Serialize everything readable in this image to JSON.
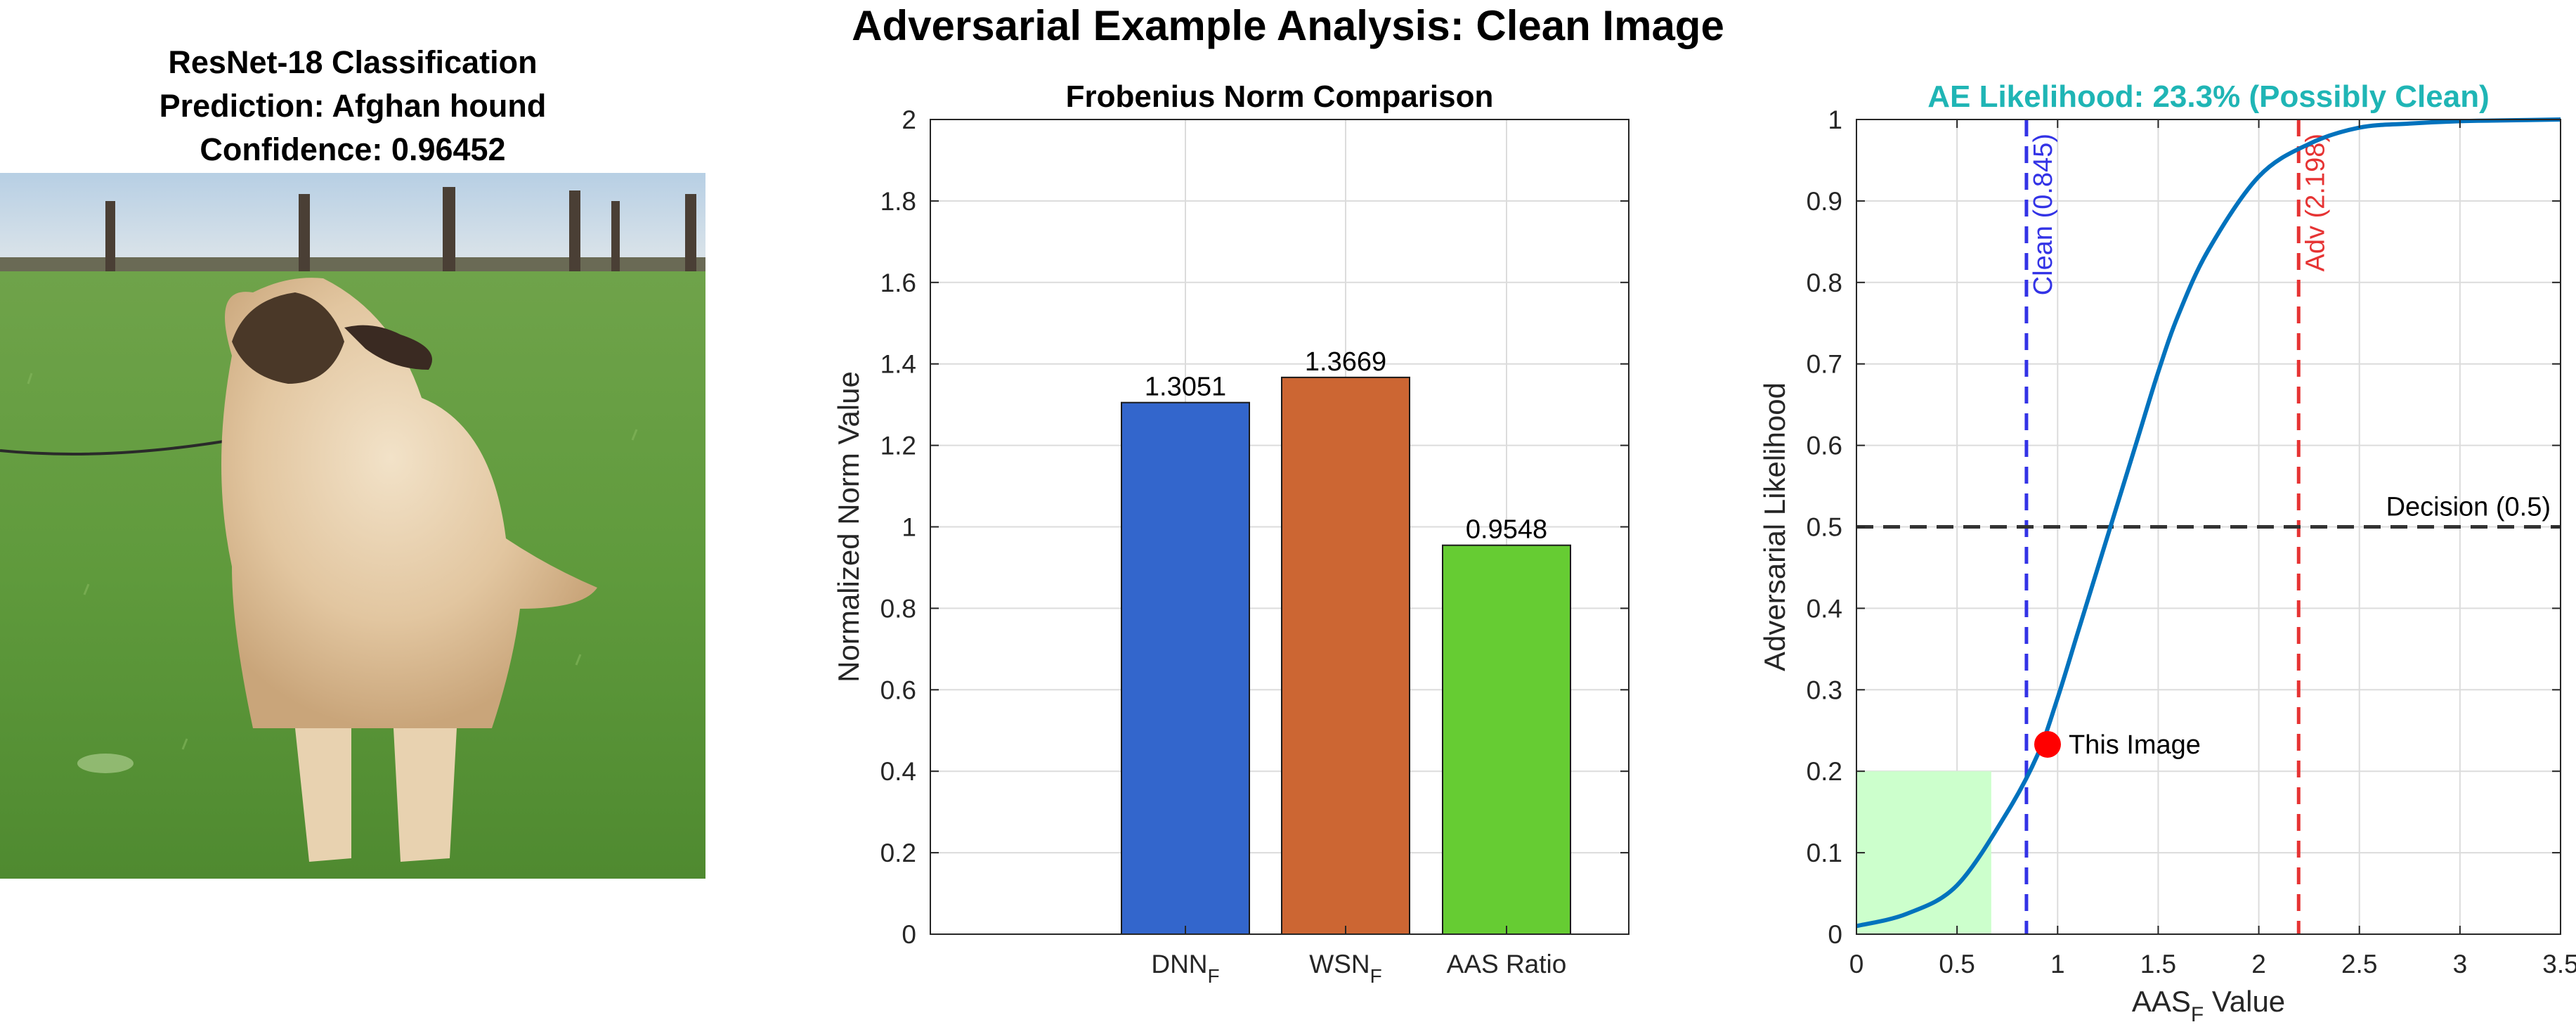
{
  "figure": {
    "title": "Adversarial Example Analysis: Clean Image"
  },
  "image_panel": {
    "title_line1": "ResNet-18 Classification",
    "title_line2": "Prediction: Afghan hound",
    "title_line3": "Confidence: 0.96452"
  },
  "chart_data": [
    {
      "type": "bar",
      "title": "Frobenius Norm Comparison",
      "xlabel": "",
      "ylabel": "Normalized Norm Value",
      "categories": [
        "DNN_F",
        "WSN_F",
        "AAS Ratio"
      ],
      "category_display": [
        {
          "base": "DNN",
          "sub": "F"
        },
        {
          "base": "WSN",
          "sub": "F"
        },
        {
          "base": "AAS Ratio",
          "sub": ""
        }
      ],
      "values": [
        1.3051,
        1.3669,
        0.9548
      ],
      "value_labels": [
        "1.3051",
        "1.3669",
        "0.9548"
      ],
      "colors": [
        "#3366cc",
        "#cc6633",
        "#66cc33"
      ],
      "ylim": [
        0,
        2
      ],
      "yticks": [
        0,
        0.2,
        0.4,
        0.6,
        0.8,
        1,
        1.2,
        1.4,
        1.6,
        1.8,
        2
      ],
      "ytick_labels": [
        "0",
        "0.2",
        "0.4",
        "0.6",
        "0.8",
        "1",
        "1.2",
        "1.4",
        "1.6",
        "1.8",
        "2"
      ],
      "grid": true
    },
    {
      "type": "line",
      "title": "AE Likelihood: 23.3% (Possibly Clean)",
      "title_color": "#1fb5b5",
      "xlabel": "AAS",
      "xlabel_sub": "F",
      "xlabel_suffix": " Value",
      "ylabel": "Adversarial Likelihood",
      "xlim": [
        0,
        3.5
      ],
      "ylim": [
        0,
        1
      ],
      "xticks": [
        0,
        0.5,
        1,
        1.5,
        2,
        2.5,
        3,
        3.5
      ],
      "xtick_labels": [
        "0",
        "0.5",
        "1",
        "1.5",
        "2",
        "2.5",
        "3",
        "3.5"
      ],
      "yticks": [
        0,
        0.1,
        0.2,
        0.3,
        0.4,
        0.5,
        0.6,
        0.7,
        0.8,
        0.9,
        1
      ],
      "ytick_labels": [
        "0",
        "0.1",
        "0.2",
        "0.3",
        "0.4",
        "0.5",
        "0.6",
        "0.7",
        "0.8",
        "0.9",
        "1"
      ],
      "grid": true,
      "curve": {
        "x": [
          0,
          0.25,
          0.5,
          0.75,
          0.9,
          1.0,
          1.1,
          1.2,
          1.3,
          1.4,
          1.5,
          1.6,
          1.75,
          2.0,
          2.25,
          2.5,
          2.75,
          3.0,
          3.25,
          3.5
        ],
        "y": [
          0.01,
          0.025,
          0.06,
          0.15,
          0.22,
          0.29,
          0.37,
          0.45,
          0.53,
          0.61,
          0.69,
          0.76,
          0.84,
          0.93,
          0.97,
          0.99,
          0.995,
          0.998,
          0.999,
          1.0
        ],
        "color": "#0072bd"
      },
      "reference_lines": [
        {
          "label": "Clean (0.845)",
          "x": 0.845,
          "orientation": "vertical",
          "color": "#3333e6"
        },
        {
          "label": "Adv (2.198)",
          "x": 2.198,
          "orientation": "vertical",
          "color": "#e63333"
        },
        {
          "label": "Decision (0.5)",
          "y": 0.5,
          "orientation": "horizontal",
          "color": "#333333"
        }
      ],
      "point": {
        "label": "This Image",
        "x": 0.95,
        "y": 0.233,
        "color": "#ff0000"
      },
      "shaded_region": {
        "x": [
          0,
          0.67
        ],
        "y": [
          0,
          0.2
        ],
        "color": "#ccffcc"
      }
    }
  ]
}
